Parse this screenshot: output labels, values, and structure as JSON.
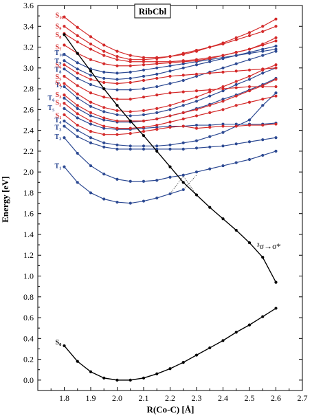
{
  "chart_data": {
    "type": "line",
    "title": "RibCbl",
    "xlabel": "R(Co-C) [Å]",
    "ylabel": "Energy [eV]",
    "xlim": [
      1.7,
      2.7
    ],
    "ylim": [
      -0.1,
      3.6
    ],
    "xticks": [
      "1.8",
      "1.9",
      "2.0",
      "2.1",
      "2.2",
      "2.3",
      "2.4",
      "2.5",
      "2.6",
      "2.7"
    ],
    "yticks": [
      "0.0",
      "0.2",
      "0.4",
      "0.6",
      "0.8",
      "1.0",
      "1.2",
      "1.4",
      "1.6",
      "1.8",
      "2.0",
      "2.2",
      "2.4",
      "2.6",
      "2.8",
      "3.0",
      "3.2",
      "3.4",
      "3.6"
    ],
    "grid": false,
    "colors": {
      "singlet": "#d42a2a",
      "triplet": "#2d4a93",
      "ground": "#000000",
      "crossing": "#555555"
    },
    "annotation": {
      "text": "³σ→σ*"
    },
    "series": [
      {
        "name": "S0",
        "label_main": "S",
        "label_sub": "0",
        "group": "ground",
        "x": [
          1.8,
          1.85,
          1.9,
          1.95,
          2.0,
          2.05,
          2.1,
          2.15,
          2.2,
          2.25,
          2.3,
          2.35,
          2.4,
          2.45,
          2.5,
          2.55,
          2.6
        ],
        "y": [
          0.33,
          0.18,
          0.08,
          0.02,
          0.0,
          0.0,
          0.02,
          0.06,
          0.11,
          0.17,
          0.24,
          0.31,
          0.38,
          0.46,
          0.53,
          0.61,
          0.69
        ]
      },
      {
        "name": "3σ→σ*",
        "label_main": "",
        "label_sub": "",
        "group": "ground",
        "x": [
          1.8,
          1.85,
          1.9,
          1.95,
          2.0,
          2.05,
          2.1,
          2.15,
          2.2,
          2.25,
          2.3,
          2.35,
          2.4,
          2.45,
          2.5,
          2.55,
          2.6
        ],
        "y": [
          3.32,
          3.14,
          2.97,
          2.8,
          2.64,
          2.49,
          2.35,
          2.2,
          2.05,
          1.9,
          1.78,
          1.66,
          1.55,
          1.44,
          1.32,
          1.18,
          0.94
        ]
      },
      {
        "name": "T1",
        "label_main": "T",
        "label_sub": "1",
        "group": "triplet",
        "x": [
          1.8,
          1.85,
          1.9,
          1.95,
          2.0,
          2.05,
          2.1,
          2.15,
          2.2,
          2.25
        ],
        "y": [
          2.05,
          1.9,
          1.8,
          1.74,
          1.71,
          1.7,
          1.72,
          1.75,
          1.79,
          1.83
        ]
      },
      {
        "name": "T2",
        "label_main": "T",
        "label_sub": "2",
        "group": "triplet",
        "x": [
          1.8,
          1.85,
          1.9,
          1.95,
          2.0,
          2.05,
          2.1,
          2.15,
          2.2,
          2.25,
          2.3,
          2.35,
          2.4,
          2.45,
          2.5,
          2.55,
          2.6
        ],
        "y": [
          2.33,
          2.18,
          2.06,
          1.98,
          1.93,
          1.91,
          1.91,
          1.92,
          1.95,
          1.97,
          2.0,
          2.03,
          2.06,
          2.09,
          2.12,
          2.16,
          2.2
        ]
      },
      {
        "name": "T3",
        "label_main": "T",
        "label_sub": "3",
        "group": "triplet",
        "x": [
          1.8,
          1.85,
          1.9,
          1.95,
          2.0,
          2.05,
          2.1,
          2.15,
          2.2,
          2.25,
          2.3,
          2.35,
          2.4,
          2.45,
          2.5,
          2.55,
          2.6
        ],
        "y": [
          2.44,
          2.34,
          2.28,
          2.24,
          2.22,
          2.22,
          2.22,
          2.22,
          2.22,
          2.22,
          2.23,
          2.24,
          2.25,
          2.27,
          2.29,
          2.31,
          2.33
        ]
      },
      {
        "name": "T4",
        "label_main": "T",
        "label_sub": "4",
        "group": "triplet",
        "x": [
          1.8,
          1.85,
          1.9,
          1.95,
          2.0,
          2.05,
          2.1,
          2.15,
          2.2,
          2.25,
          2.3,
          2.35,
          2.4,
          2.45,
          2.5,
          2.55,
          2.6
        ],
        "y": [
          2.49,
          2.4,
          2.33,
          2.28,
          2.26,
          2.25,
          2.25,
          2.25,
          2.26,
          2.28,
          2.3,
          2.34,
          2.38,
          2.44,
          2.5,
          2.64,
          2.76
        ]
      },
      {
        "name": "S1",
        "label_main": "S",
        "label_sub": "1",
        "group": "singlet",
        "x": [
          1.8,
          1.85,
          1.9,
          1.95,
          2.0,
          2.05,
          2.1,
          2.15,
          2.2,
          2.25,
          2.3,
          2.35,
          2.4,
          2.45,
          2.5,
          2.55,
          2.6
        ],
        "y": [
          2.55,
          2.45,
          2.39,
          2.36,
          2.36,
          2.37,
          2.39,
          2.41,
          2.43,
          2.44,
          2.42,
          2.43,
          2.44,
          2.44,
          2.45,
          2.45,
          2.46
        ]
      },
      {
        "name": "T5",
        "label_main": "T",
        "label_sub": "5",
        "group": "triplet",
        "x": [
          1.8,
          1.85,
          1.9,
          1.95,
          2.0,
          2.05,
          2.1,
          2.15,
          2.2,
          2.25,
          2.3,
          2.35,
          2.4,
          2.45,
          2.5,
          2.55,
          2.6
        ],
        "y": [
          2.61,
          2.52,
          2.46,
          2.42,
          2.41,
          2.41,
          2.42,
          2.43,
          2.44,
          2.44,
          2.45,
          2.45,
          2.46,
          2.46,
          2.46,
          2.46,
          2.47
        ]
      },
      {
        "name": "S2",
        "label_main": "S",
        "label_sub": "2",
        "group": "singlet",
        "x": [
          1.8,
          1.85,
          1.9,
          1.95,
          2.0,
          2.05,
          2.1,
          2.15,
          2.2,
          2.25,
          2.3,
          2.35,
          2.4,
          2.45,
          2.5,
          2.55,
          2.6
        ],
        "y": [
          2.66,
          2.56,
          2.49,
          2.44,
          2.42,
          2.42,
          2.43,
          2.45,
          2.48,
          2.51,
          2.54,
          2.57,
          2.6,
          2.64,
          2.67,
          2.7,
          2.73
        ]
      },
      {
        "name": "T6",
        "label_main": "T",
        "label_sub": "6",
        "group": "triplet",
        "x": [
          1.8,
          1.85,
          1.9,
          1.95,
          2.0,
          2.05,
          2.1,
          2.15,
          2.2,
          2.25,
          2.3,
          2.35,
          2.4,
          2.45,
          2.5,
          2.55,
          2.6
        ],
        "y": [
          2.71,
          2.61,
          2.54,
          2.5,
          2.48,
          2.48,
          2.49,
          2.51,
          2.54,
          2.57,
          2.61,
          2.65,
          2.7,
          2.74,
          2.79,
          2.84,
          2.9
        ]
      },
      {
        "name": "S3",
        "label_main": "S",
        "label_sub": "3",
        "group": "singlet",
        "x": [
          1.8,
          1.85,
          1.9,
          1.95,
          2.0,
          2.05,
          2.1,
          2.15,
          2.2,
          2.25,
          2.3,
          2.35,
          2.4,
          2.45,
          2.5,
          2.55,
          2.6
        ],
        "y": [
          2.74,
          2.64,
          2.57,
          2.52,
          2.49,
          2.49,
          2.49,
          2.51,
          2.54,
          2.57,
          2.6,
          2.64,
          2.68,
          2.73,
          2.78,
          2.83,
          2.89
        ]
      },
      {
        "name": "T7",
        "label_main": "T",
        "label_sub": "7",
        "group": "triplet",
        "x": [
          1.8,
          1.85,
          1.9,
          1.95,
          2.0,
          2.05,
          2.1,
          2.15,
          2.2,
          2.25,
          2.3,
          2.35,
          2.4,
          2.45,
          2.5,
          2.55,
          2.6
        ],
        "y": [
          2.82,
          2.71,
          2.63,
          2.58,
          2.55,
          2.54,
          2.55,
          2.57,
          2.6,
          2.64,
          2.68,
          2.73,
          2.78,
          2.84,
          2.89,
          2.95,
          3.0
        ]
      },
      {
        "name": "S4",
        "label_main": "S",
        "label_sub": "4",
        "group": "singlet",
        "x": [
          1.8,
          1.85,
          1.9,
          1.95,
          2.0,
          2.05,
          2.1,
          2.15,
          2.2,
          2.25,
          2.3,
          2.35,
          2.4,
          2.45,
          2.5,
          2.55,
          2.6
        ],
        "y": [
          2.85,
          2.75,
          2.67,
          2.62,
          2.59,
          2.58,
          2.59,
          2.61,
          2.64,
          2.68,
          2.72,
          2.77,
          2.82,
          2.87,
          2.92,
          2.98,
          3.03
        ]
      },
      {
        "name": "S5",
        "label_main": "S",
        "label_sub": "5",
        "group": "singlet",
        "x": [
          1.8,
          1.85,
          1.9,
          1.95,
          2.0,
          2.05,
          2.1,
          2.15,
          2.2,
          2.25,
          2.3,
          2.35,
          2.4,
          2.45,
          2.5,
          2.55,
          2.6
        ],
        "y": [
          2.92,
          2.83,
          2.76,
          2.72,
          2.7,
          2.7,
          2.72,
          2.74,
          2.76,
          2.77,
          2.78,
          2.79,
          2.8,
          2.81,
          2.82,
          2.82,
          2.82
        ]
      },
      {
        "name": "T8",
        "label_main": "T",
        "label_sub": "8",
        "group": "triplet",
        "x": [
          1.8,
          1.85,
          1.9,
          1.95,
          2.0,
          2.05,
          2.1,
          2.15,
          2.2,
          2.25,
          2.3,
          2.35,
          2.4,
          2.45,
          2.5,
          2.55,
          2.6
        ],
        "y": [
          2.99,
          2.9,
          2.84,
          2.8,
          2.79,
          2.79,
          2.8,
          2.82,
          2.85,
          2.88,
          2.92,
          2.96,
          3.0,
          3.04,
          3.08,
          3.12,
          3.16
        ]
      },
      {
        "name": "S6",
        "label_main": "S",
        "label_sub": "6",
        "group": "singlet",
        "x": [
          1.8,
          1.85,
          1.9,
          1.95,
          2.0,
          2.05,
          2.1,
          2.15,
          2.2,
          2.25,
          2.3,
          2.35,
          2.4,
          2.45,
          2.5,
          2.55,
          2.6
        ],
        "y": [
          3.03,
          2.95,
          2.89,
          2.86,
          2.85,
          2.86,
          2.88,
          2.9,
          2.92,
          2.93,
          2.94,
          2.95,
          2.96,
          2.97,
          2.98,
          2.99,
          3.0
        ]
      },
      {
        "name": "T9",
        "label_main": "T",
        "label_sub": "9",
        "group": "triplet",
        "x": [
          1.8,
          1.85,
          1.9,
          1.95,
          2.0,
          2.05,
          2.1,
          2.15,
          2.2,
          2.25,
          2.3,
          2.35,
          2.4,
          2.45,
          2.5,
          2.55,
          2.6
        ],
        "y": [
          3.07,
          2.99,
          2.93,
          2.9,
          2.89,
          2.9,
          2.92,
          2.94,
          2.97,
          3.0,
          3.03,
          3.06,
          3.09,
          3.12,
          3.15,
          3.18,
          3.21
        ]
      },
      {
        "name": "T10",
        "label_main": "T",
        "label_sub": "10",
        "group": "triplet",
        "x": [
          1.8,
          1.85,
          1.9,
          1.95,
          2.0,
          2.05,
          2.1,
          2.15,
          2.2,
          2.25,
          2.3,
          2.35,
          2.4,
          2.45,
          2.5,
          2.55,
          2.6
        ],
        "y": [
          3.13,
          3.05,
          2.99,
          2.96,
          2.95,
          2.96,
          2.98,
          3.0,
          3.02,
          3.04,
          3.06,
          3.08,
          3.1,
          3.12,
          3.14,
          3.16,
          3.18
        ]
      },
      {
        "name": "S7",
        "label_main": "S",
        "label_sub": "7",
        "group": "singlet",
        "x": [
          1.8,
          1.85,
          1.9,
          1.95,
          2.0,
          2.05,
          2.1,
          2.15,
          2.2,
          2.25,
          2.3,
          2.35,
          2.4,
          2.45,
          2.5,
          2.55,
          2.6
        ],
        "y": [
          3.22,
          3.14,
          3.08,
          3.04,
          3.02,
          3.02,
          3.03,
          3.04,
          3.05,
          3.06,
          3.07,
          3.09,
          3.12,
          3.15,
          3.18,
          3.22,
          3.26
        ]
      },
      {
        "name": "S8",
        "label_main": "S",
        "label_sub": "8",
        "group": "singlet",
        "x": [
          1.8,
          1.85,
          1.9,
          1.95,
          2.0,
          2.05,
          2.1,
          2.15,
          2.2,
          2.25,
          2.3,
          2.35,
          2.4,
          2.45,
          2.5,
          2.55,
          2.6
        ],
        "y": [
          3.33,
          3.25,
          3.18,
          3.12,
          3.08,
          3.06,
          3.06,
          3.06,
          3.06,
          3.07,
          3.08,
          3.1,
          3.12,
          3.15,
          3.18,
          3.23,
          3.29
        ]
      },
      {
        "name": "S9",
        "label_main": "S",
        "label_sub": "9",
        "group": "singlet",
        "x": [
          1.8,
          1.85,
          1.9,
          1.95,
          2.0,
          2.05,
          2.1,
          2.15,
          2.2,
          2.25,
          2.3,
          2.35,
          2.4,
          2.45,
          2.5,
          2.55,
          2.6
        ],
        "y": [
          3.4,
          3.31,
          3.23,
          3.16,
          3.11,
          3.08,
          3.08,
          3.09,
          3.11,
          3.14,
          3.17,
          3.2,
          3.23,
          3.27,
          3.31,
          3.35,
          3.4
        ]
      },
      {
        "name": "S10",
        "label_main": "S",
        "label_sub": "10",
        "group": "singlet",
        "x": [
          1.8,
          1.85,
          1.9,
          1.95,
          2.0,
          2.05,
          2.1,
          2.15,
          2.2,
          2.25,
          2.3,
          2.35,
          2.4,
          2.45,
          2.5,
          2.55,
          2.6
        ],
        "y": [
          3.49,
          3.39,
          3.3,
          3.22,
          3.16,
          3.12,
          3.1,
          3.1,
          3.11,
          3.13,
          3.16,
          3.2,
          3.24,
          3.29,
          3.34,
          3.4,
          3.47
        ]
      }
    ],
    "crossing_lines": [
      {
        "x": [
          2.2,
          2.25,
          2.3
        ],
        "y": [
          1.79,
          1.96,
          1.78
        ]
      },
      {
        "x": [
          2.25,
          2.3
        ],
        "y": [
          1.83,
          1.97
        ]
      }
    ]
  }
}
